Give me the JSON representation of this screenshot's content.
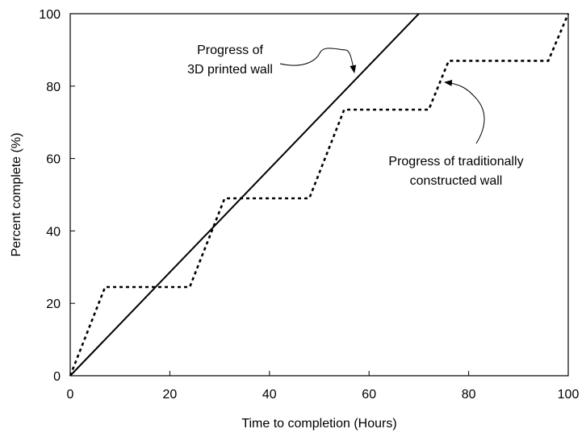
{
  "chart_data": {
    "type": "line",
    "title": "",
    "xlabel": "Time to completion (Hours)",
    "ylabel": "Percent complete (%)",
    "xlim": [
      0,
      100
    ],
    "ylim": [
      0,
      100
    ],
    "x_ticks": [
      0,
      20,
      40,
      60,
      80,
      100
    ],
    "y_ticks": [
      0,
      20,
      40,
      60,
      80,
      100
    ],
    "grid": false,
    "legend": false,
    "series": [
      {
        "style": "solid",
        "x": [
          0,
          70
        ],
        "y": [
          0,
          100
        ]
      },
      {
        "style": "dotted",
        "x": [
          0,
          7,
          24,
          31,
          48,
          55,
          72,
          76,
          96,
          100
        ],
        "y": [
          0,
          24.5,
          24.5,
          49,
          49,
          73.5,
          73.5,
          87,
          87,
          100
        ]
      }
    ],
    "annotations": [
      {
        "name": "annotation-3d-printed",
        "lines": [
          "Progress of",
          "3D printed wall"
        ],
        "points_to": {
          "x": 58,
          "y": 83
        }
      },
      {
        "name": "annotation-traditional",
        "lines": [
          "Progress of traditionally",
          "constructed wall"
        ],
        "points_to": {
          "x": 75,
          "y": 81
        }
      }
    ]
  }
}
